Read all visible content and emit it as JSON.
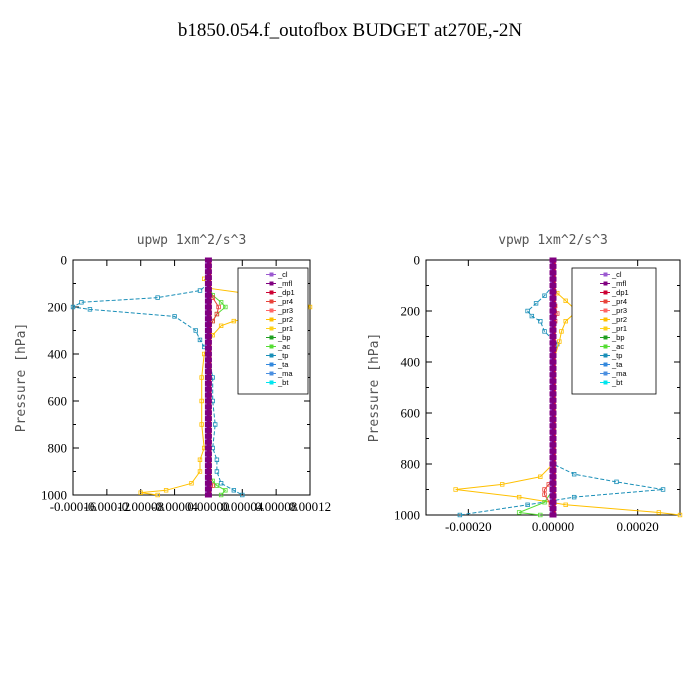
{
  "title": "b1850.054.f_outofbox  BUDGET at270E,-2N",
  "colors": {
    "_cl": "#9b59d0",
    "_mfl": "#800080",
    "_dp1": "#cc0033",
    "_pr4": "#e8433a",
    "_pr3": "#ff6666",
    "_pr2": "#ffc000",
    "_pr1": "#ffd21a",
    "_bp": "#20a020",
    "_ac": "#55dd33",
    "_tp": "#1a8fb8",
    "_ta": "#3388dd",
    "_ma": "#4b8fe0",
    "_bt": "#00e5ee"
  },
  "chart_data": [
    {
      "type": "line",
      "title": "upwp  1xm^2/s^3",
      "ylabel": "Pressure [hPa]",
      "xlim": [
        -0.00016,
        0.00012
      ],
      "ylim": [
        1000,
        0
      ],
      "x_tick_labels": [
        "-0.00016",
        "-0.00012",
        "-0.00008",
        "-0.00004",
        "0.00000",
        "0.00004",
        "0.00008",
        "0.00012"
      ],
      "y_tick_labels": [
        "0",
        "200",
        "400",
        "600",
        "800",
        "1000"
      ],
      "legend": [
        "_cl",
        "_mfl",
        "_dp1",
        "_pr4",
        "_pr3",
        "_pr2",
        "_pr1",
        "_bp",
        "_ac",
        "_tp",
        "_ta",
        "_ma",
        "_bt"
      ],
      "legend_position": "top-right",
      "series": [
        {
          "name": "_tp",
          "p": [
            100,
            130,
            160,
            180,
            200,
            210,
            240,
            300,
            340,
            370,
            400,
            500,
            600,
            700,
            800,
            850,
            900,
            950,
            980,
            1000
          ],
          "values": [
            0,
            -1e-05,
            -6e-05,
            -0.00015,
            -0.00016,
            -0.00014,
            -4e-05,
            -1.5e-05,
            -1e-05,
            -5e-06,
            0,
            5e-06,
            5e-06,
            8e-06,
            5e-06,
            1e-05,
            1e-05,
            1.5e-05,
            3e-05,
            4e-05
          ]
        },
        {
          "name": "_pr2",
          "p": [
            80,
            120,
            140,
            160,
            180,
            200,
            220,
            240,
            260,
            280,
            320,
            360,
            400,
            500,
            600,
            700,
            800,
            850,
            900,
            950,
            980,
            990,
            1000
          ],
          "values": [
            -5e-06,
            0,
            4e-05,
            9e-05,
            0.000115,
            0.00012,
            9e-05,
            6e-05,
            3e-05,
            1.5e-05,
            5e-06,
            0,
            -5e-06,
            -8e-06,
            -8e-06,
            -8e-06,
            -5e-06,
            -1e-05,
            -1e-05,
            -2e-05,
            -5e-05,
            -8e-05,
            -6e-05
          ]
        },
        {
          "name": "_ac",
          "p": [
            100,
            150,
            180,
            200,
            230,
            260,
            300,
            400,
            900,
            940,
            960,
            980,
            1000
          ],
          "values": [
            0,
            5e-06,
            1.5e-05,
            2e-05,
            1e-05,
            5e-06,
            0,
            0,
            0,
            5e-06,
            1e-05,
            2e-05,
            1.5e-05
          ]
        },
        {
          "name": "_pr4",
          "p": [
            120,
            160,
            200,
            230,
            260,
            300,
            900,
            960,
            1000
          ],
          "values": [
            0,
            5e-06,
            1.2e-05,
            1e-05,
            5e-06,
            0,
            0,
            5e-06,
            0
          ]
        }
      ]
    },
    {
      "type": "line",
      "title": "vpwp  1xm^2/s^3",
      "ylabel": "Pressure [hPa]",
      "xlim": [
        -0.0003,
        0.0003
      ],
      "ylim": [
        1000,
        0
      ],
      "x_tick_labels": [
        "-0.00020",
        "0.00000",
        "0.00020"
      ],
      "y_tick_labels": [
        "0",
        "200",
        "400",
        "600",
        "800",
        "1000"
      ],
      "legend": [
        "_cl",
        "_mfl",
        "_dp1",
        "_pr4",
        "_pr3",
        "_pr2",
        "_pr1",
        "_bp",
        "_ac",
        "_tp",
        "_ta",
        "_ma",
        "_bt"
      ],
      "legend_position": "top-right",
      "series": [
        {
          "name": "_tp",
          "p": [
            100,
            140,
            170,
            200,
            220,
            240,
            280,
            330,
            400,
            800,
            840,
            870,
            900,
            930,
            960,
            1000
          ],
          "values": [
            0,
            -2e-05,
            -4e-05,
            -6e-05,
            -5e-05,
            -3e-05,
            -2e-05,
            1e-05,
            0,
            0,
            5e-05,
            0.00015,
            0.00026,
            5e-05,
            -6e-05,
            -0.00022
          ]
        },
        {
          "name": "_pr2",
          "p": [
            100,
            130,
            160,
            190,
            210,
            240,
            280,
            320,
            400,
            800,
            850,
            880,
            900,
            930,
            960,
            990,
            1000
          ],
          "values": [
            0,
            1e-05,
            3e-05,
            5e-05,
            5e-05,
            3e-05,
            2e-05,
            1.5e-05,
            0,
            0,
            -3e-05,
            -0.00012,
            -0.00023,
            -8e-05,
            3e-05,
            0.00025,
            0.0003
          ]
        },
        {
          "name": "_ac",
          "p": [
            100,
            900,
            950,
            990,
            1000
          ],
          "values": [
            0,
            0,
            -2e-05,
            -8e-05,
            -3e-05
          ]
        },
        {
          "name": "_pr4",
          "p": [
            100,
            180,
            210,
            240,
            300,
            860,
            880,
            900,
            920,
            960,
            1000
          ],
          "values": [
            0,
            5e-06,
            1e-05,
            5e-06,
            0,
            0,
            -1e-05,
            -2e-05,
            -2e-05,
            -5e-06,
            0
          ]
        }
      ]
    }
  ]
}
